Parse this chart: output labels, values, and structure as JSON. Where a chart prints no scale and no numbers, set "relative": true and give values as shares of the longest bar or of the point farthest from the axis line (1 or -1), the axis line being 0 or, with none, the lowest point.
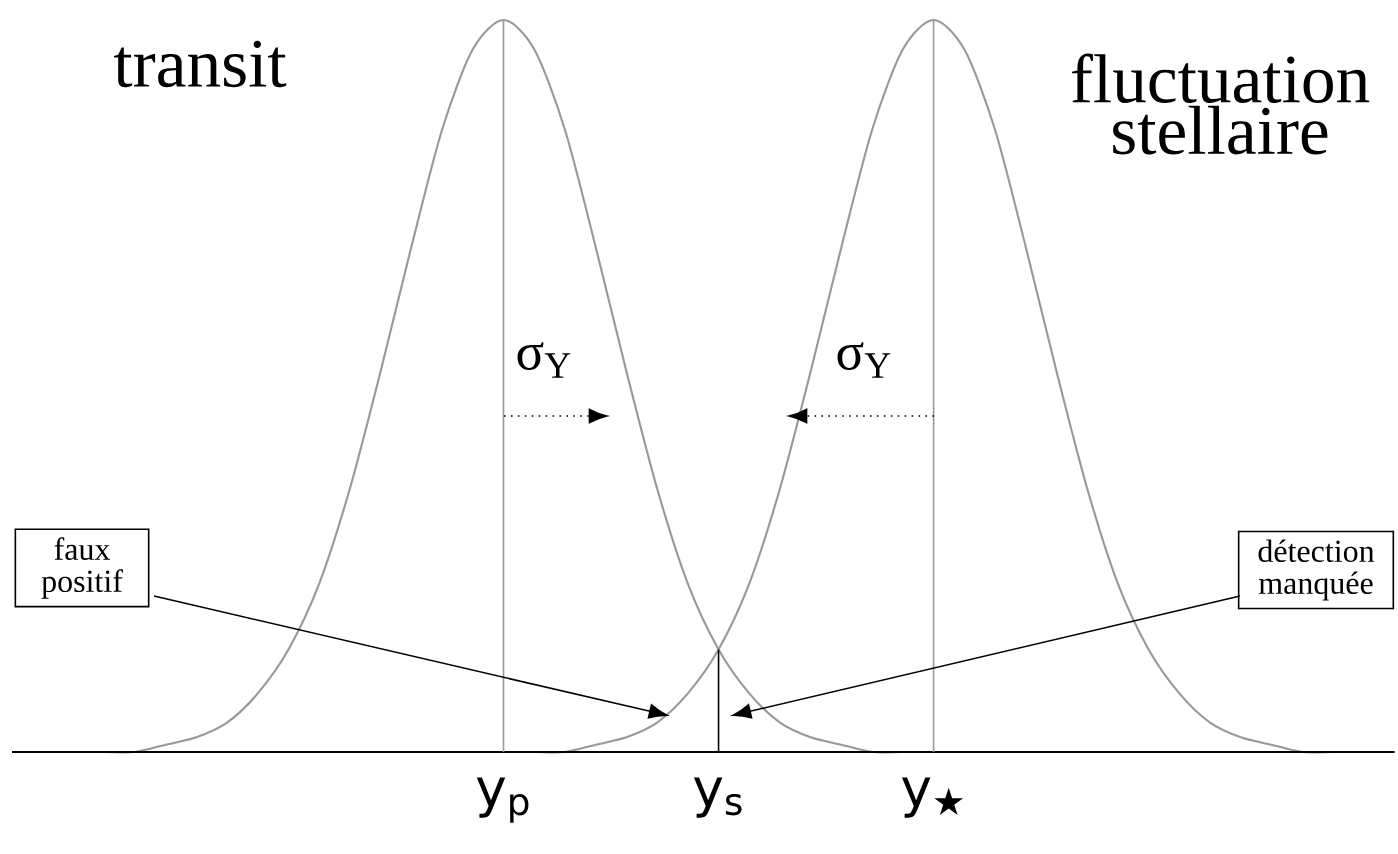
{
  "chart_data": {
    "type": "line",
    "relative": true,
    "categories": [
      null,
      null,
      null,
      null,
      null,
      null,
      null,
      null,
      null,
      null,
      null,
      null,
      null,
      null,
      null,
      null,
      "y$_{p}$",
      null,
      null,
      null,
      null,
      null,
      null,
      "y$_{s}$",
      null,
      null,
      null,
      null,
      null,
      null,
      "y$_{★}$",
      null,
      null,
      null,
      null,
      null,
      null,
      null,
      null,
      null,
      null,
      null,
      null,
      null,
      null,
      null
    ],
    "series": [
      {
        "color": "#999999",
        "values": [
          0,
          0,
          0,
          0,
          0,
          0.01,
          0.02,
          0.04,
          0.08,
          0.14,
          0.23,
          0.36,
          0.52,
          0.69,
          0.85,
          0.96,
          1,
          0.96,
          0.85,
          0.69,
          0.52,
          0.36,
          0.23,
          0.14,
          0.08,
          0.04,
          0.02,
          0.01,
          0,
          0,
          0,
          0,
          0,
          0,
          0,
          0,
          0,
          0,
          0,
          0,
          0,
          0,
          0,
          0,
          0,
          0
        ]
      },
      {
        "color": "#999999",
        "values": [
          0,
          0,
          0,
          0,
          0,
          0,
          0,
          0,
          0,
          0,
          0,
          0,
          0,
          0,
          0,
          0,
          0,
          0,
          0,
          0.01,
          0.02,
          0.04,
          0.08,
          0.14,
          0.23,
          0.36,
          0.52,
          0.69,
          0.85,
          0.96,
          1,
          0.96,
          0.85,
          0.69,
          0.52,
          0.36,
          0.23,
          0.14,
          0.08,
          0.04,
          0.02,
          0.01,
          0,
          0,
          0,
          0
        ]
      }
    ],
    "ref_lines": [
      {
        "axis": "x",
        "value": "y$_{p}$",
        "color": "#999999"
      },
      {
        "axis": "x",
        "value": "y$_{★}$",
        "color": "#999999"
      },
      {
        "axis": "x",
        "value": "y$_{s}$",
        "color": "#000000"
      }
    ],
    "annotations": [
      "transit",
      "fluctuation stellaire",
      "σ$_{Y}$",
      "σ$_{Y}$",
      "faux positif",
      "détection manquée"
    ]
  }
}
